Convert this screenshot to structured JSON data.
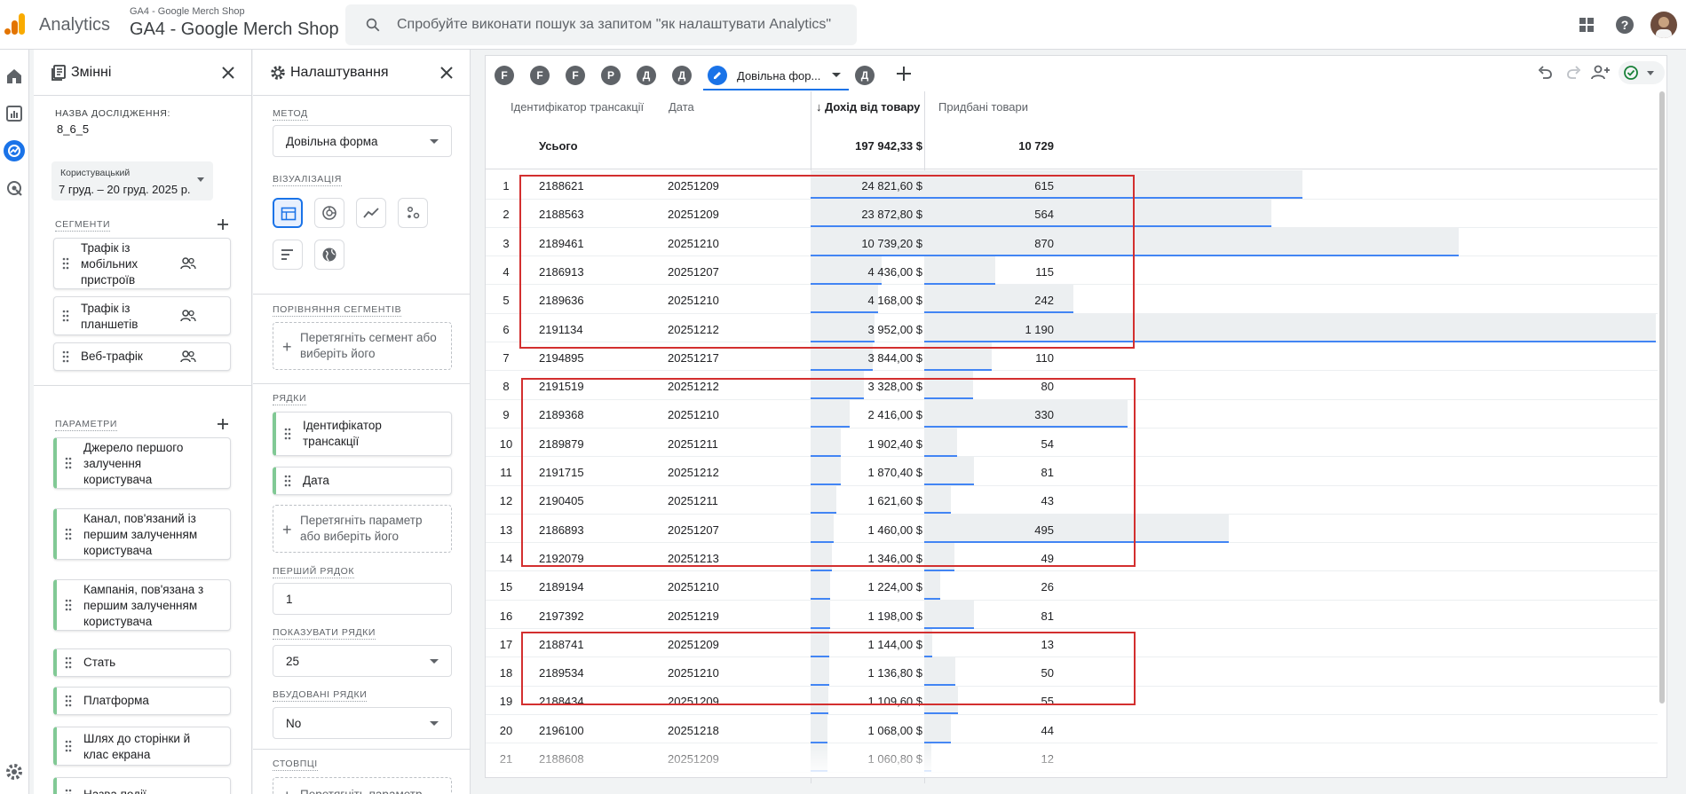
{
  "app": {
    "name": "Analytics",
    "account_small": "GA4 - Google Merch Shop",
    "account_big": "GA4 - Google Merch Shop",
    "search_placeholder": "Спробуйте виконати пошук за запитом \"як налаштувати Analytics\""
  },
  "variables_panel": {
    "title": "Змінні",
    "exploration_name_label": "НАЗВА ДОСЛІДЖЕННЯ:",
    "exploration_name": "8_6_5",
    "date_label": "Користувацький",
    "date_range": "7 груд. – 20 груд. 2025 р.",
    "segments_label": "СЕГМЕНТИ",
    "segments": [
      [
        "Трафік із",
        "мобільних",
        "пристроїв"
      ],
      [
        "Трафік із",
        "планшетів"
      ],
      [
        "Веб-трафік"
      ]
    ],
    "dimensions_label": "ПАРАМЕТРИ",
    "dimensions": [
      [
        "Джерело першого",
        "залучення",
        "користувача"
      ],
      [
        "Канал, пов'язаний із",
        "першим залученням",
        "користувача"
      ],
      [
        "Кампанія, пов'язана з",
        "першим залученням",
        "користувача"
      ],
      [
        "Стать"
      ],
      [
        "Платформа"
      ],
      [
        "Шлях до сторінки й",
        "клас екрана"
      ],
      [
        "Назва події"
      ]
    ]
  },
  "settings_panel": {
    "title": "Налаштування",
    "method_label": "МЕТОД",
    "method_value": "Довільна форма",
    "viz_label": "ВІЗУАЛІЗАЦІЯ",
    "segment_compare_label": "ПОРІВНЯННЯ СЕГМЕНТІВ",
    "segment_drop": [
      "Перетягніть сегмент або",
      "виберіть його"
    ],
    "rows_label": "РЯДКИ",
    "rows": [
      [
        "Ідентифікатор",
        "трансакції"
      ],
      [
        "Дата"
      ]
    ],
    "rows_drop": [
      "Перетягніть параметр",
      "або виберіть його"
    ],
    "first_row_label": "ПЕРШИЙ РЯДОК",
    "first_row_value": "1",
    "show_rows_label": "ПОКАЗУВАТИ РЯДКИ",
    "show_rows_value": "25",
    "nested_rows_label": "ВБУДОВАНІ РЯДКИ",
    "nested_rows_value": "No",
    "columns_label": "СТОВПЦІ",
    "columns_drop": "Перетягніть параметр"
  },
  "canvas": {
    "tabs": [
      "F",
      "F",
      "F",
      "P",
      "Д",
      "Д"
    ],
    "active_tab": "Довільна фор...",
    "after_tab": "Д",
    "columns": [
      "Ідентифікатор трансакції",
      "Дата",
      "Дохід від товару",
      "Придбані товари"
    ],
    "sort_arrow": "↓",
    "total_label": "Усього",
    "total_revenue": "197 942,33 $",
    "total_items": "10 729",
    "rows": [
      {
        "idx": "1",
        "id": "2188621",
        "date": "20251209",
        "rev": "24 821,60 $",
        "items": "615",
        "rev_v": 24821.6,
        "items_v": 615
      },
      {
        "idx": "2",
        "id": "2188563",
        "date": "20251209",
        "rev": "23 872,80 $",
        "items": "564",
        "rev_v": 23872.8,
        "items_v": 564
      },
      {
        "idx": "3",
        "id": "2189461",
        "date": "20251210",
        "rev": "10 739,20 $",
        "items": "870",
        "rev_v": 10739.2,
        "items_v": 870
      },
      {
        "idx": "4",
        "id": "2186913",
        "date": "20251207",
        "rev": "4 436,00 $",
        "items": "115",
        "rev_v": 4436,
        "items_v": 115
      },
      {
        "idx": "5",
        "id": "2189636",
        "date": "20251210",
        "rev": "4 168,00 $",
        "items": "242",
        "rev_v": 4168,
        "items_v": 242
      },
      {
        "idx": "6",
        "id": "2191134",
        "date": "20251212",
        "rev": "3 952,00 $",
        "items": "1 190",
        "rev_v": 3952,
        "items_v": 1190
      },
      {
        "idx": "7",
        "id": "2194895",
        "date": "20251217",
        "rev": "3 844,00 $",
        "items": "110",
        "rev_v": 3844,
        "items_v": 110
      },
      {
        "idx": "8",
        "id": "2191519",
        "date": "20251212",
        "rev": "3 328,00 $",
        "items": "80",
        "rev_v": 3328,
        "items_v": 80
      },
      {
        "idx": "9",
        "id": "2189368",
        "date": "20251210",
        "rev": "2 416,00 $",
        "items": "330",
        "rev_v": 2416,
        "items_v": 330
      },
      {
        "idx": "10",
        "id": "2189879",
        "date": "20251211",
        "rev": "1 902,40 $",
        "items": "54",
        "rev_v": 1902.4,
        "items_v": 54
      },
      {
        "idx": "11",
        "id": "2191715",
        "date": "20251212",
        "rev": "1 870,40 $",
        "items": "81",
        "rev_v": 1870.4,
        "items_v": 81
      },
      {
        "idx": "12",
        "id": "2190405",
        "date": "20251211",
        "rev": "1 621,60 $",
        "items": "43",
        "rev_v": 1621.6,
        "items_v": 43
      },
      {
        "idx": "13",
        "id": "2186893",
        "date": "20251207",
        "rev": "1 460,00 $",
        "items": "495",
        "rev_v": 1460,
        "items_v": 495
      },
      {
        "idx": "14",
        "id": "2192079",
        "date": "20251213",
        "rev": "1 346,00 $",
        "items": "49",
        "rev_v": 1346,
        "items_v": 49
      },
      {
        "idx": "15",
        "id": "2189194",
        "date": "20251210",
        "rev": "1 224,00 $",
        "items": "26",
        "rev_v": 1224,
        "items_v": 26
      },
      {
        "idx": "16",
        "id": "2197392",
        "date": "20251219",
        "rev": "1 198,00 $",
        "items": "81",
        "rev_v": 1198,
        "items_v": 81
      },
      {
        "idx": "17",
        "id": "2188741",
        "date": "20251209",
        "rev": "1 144,00 $",
        "items": "13",
        "rev_v": 1144,
        "items_v": 13
      },
      {
        "idx": "18",
        "id": "2189534",
        "date": "20251210",
        "rev": "1 136,80 $",
        "items": "50",
        "rev_v": 1136.8,
        "items_v": 50
      },
      {
        "idx": "19",
        "id": "2188434",
        "date": "20251209",
        "rev": "1 109,60 $",
        "items": "55",
        "rev_v": 1109.6,
        "items_v": 55
      },
      {
        "idx": "20",
        "id": "2196100",
        "date": "20251218",
        "rev": "1 068,00 $",
        "items": "44",
        "rev_v": 1068,
        "items_v": 44
      },
      {
        "idx": "21",
        "id": "2188608",
        "date": "20251209",
        "rev": "1 060,80 $",
        "items": "12",
        "rev_v": 1060.8,
        "items_v": 12
      }
    ]
  },
  "colors": {
    "accent": "#1a73e8",
    "bar_fill": "#eceff1",
    "bar_line": "#4285f4",
    "highlight": "#d32f2f",
    "logo_orange": "#f9ab00",
    "logo_dark_orange": "#e37400"
  },
  "icons": [
    "analytics-logo-icon",
    "search-icon",
    "apps-grid-icon",
    "help-icon",
    "home-icon",
    "reports-icon",
    "explore-icon",
    "advertising-icon",
    "settings-gear-icon",
    "variables-icon",
    "close-icon",
    "settings-icon",
    "plus-icon",
    "drag-handle-icon",
    "segment-people-icon",
    "table-viz-icon",
    "donut-viz-icon",
    "line-viz-icon",
    "scatter-viz-icon",
    "bar-viz-icon",
    "geo-viz-icon",
    "pencil-icon",
    "undo-icon",
    "redo-icon",
    "share-icon",
    "check-status-icon"
  ]
}
